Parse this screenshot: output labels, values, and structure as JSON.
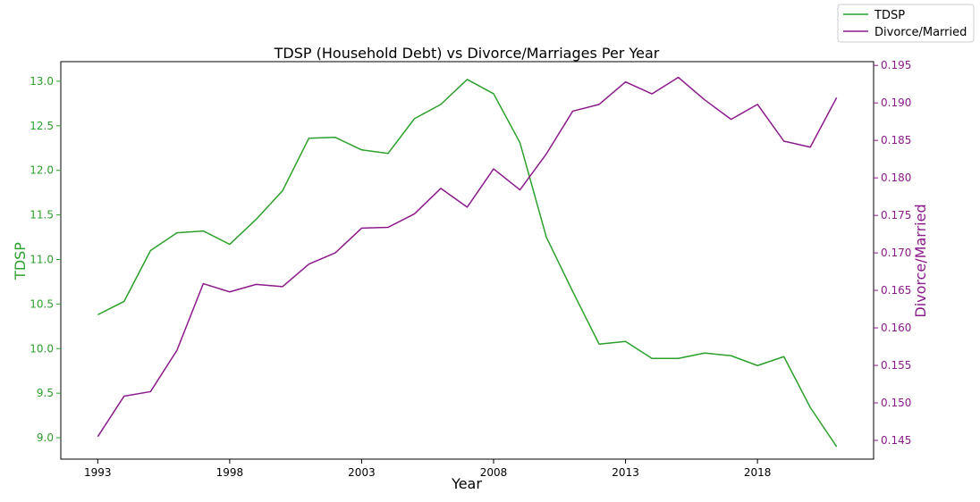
{
  "chart_data": {
    "type": "line",
    "title": "TDSP (Household Debt) vs Divorce/Marriages Per Year",
    "xlabel": "Year",
    "x": [
      1993,
      1994,
      1995,
      1996,
      1997,
      1998,
      1999,
      2000,
      2001,
      2002,
      2003,
      2004,
      2005,
      2006,
      2007,
      2008,
      2009,
      2010,
      2011,
      2012,
      2013,
      2014,
      2015,
      2016,
      2017,
      2018,
      2019,
      2020,
      2021
    ],
    "x_ticks": [
      1993,
      1998,
      2003,
      2008,
      2013,
      2018
    ],
    "xlim": [
      1991.6,
      2022.4
    ],
    "left_axis": {
      "label": "TDSP",
      "color": "#2ca02c",
      "ylim": [
        8.76,
        13.22
      ],
      "ticks": [
        "9.0",
        "9.5",
        "10.0",
        "10.5",
        "11.0",
        "11.5",
        "12.0",
        "12.5",
        "13.0"
      ]
    },
    "right_axis": {
      "label": "Divorce/Married",
      "color": "#8b1a8b",
      "ylim": [
        0.1425,
        0.1955
      ],
      "ticks": [
        "0.145",
        "0.150",
        "0.155",
        "0.160",
        "0.165",
        "0.170",
        "0.175",
        "0.180",
        "0.185",
        "0.190",
        "0.195"
      ]
    },
    "legend_position": "top-right",
    "series": [
      {
        "name": "TDSP",
        "axis": "left",
        "color": "#2ca02c",
        "values": [
          10.38,
          10.53,
          11.1,
          11.3,
          11.32,
          11.17,
          11.45,
          11.77,
          12.36,
          12.37,
          12.23,
          12.19,
          12.58,
          12.74,
          13.02,
          12.86,
          12.31,
          11.25,
          10.64,
          10.05,
          10.08,
          9.89,
          9.89,
          9.95,
          9.92,
          9.81,
          9.91,
          9.34,
          8.9
        ]
      },
      {
        "name": "Divorce/Married",
        "axis": "right",
        "color": "#8b1a8b",
        "values": [
          0.1455,
          0.1509,
          0.1515,
          0.157,
          0.1659,
          0.1648,
          0.1658,
          0.1655,
          0.1685,
          0.17,
          0.1733,
          0.1734,
          0.1752,
          0.1786,
          0.1761,
          0.1812,
          0.1784,
          0.1832,
          0.1889,
          0.1898,
          0.1928,
          0.1912,
          0.1934,
          0.1904,
          0.1878,
          0.1898,
          0.1849,
          0.1841,
          0.1907
        ]
      }
    ]
  }
}
